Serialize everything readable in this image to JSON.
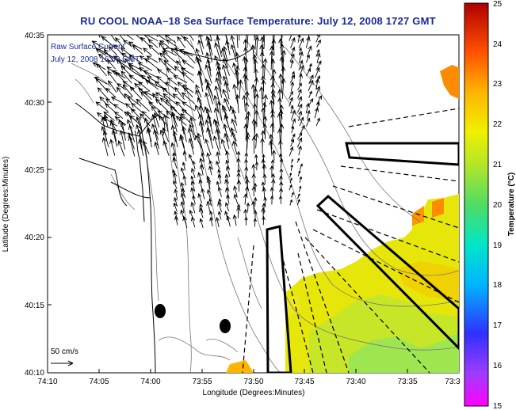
{
  "title": "RU COOL  NOAA–18  Sea Surface Temperature:  July 12, 2008 1727 GMT",
  "legend": {
    "line1": "Raw Surface Current",
    "line2": "July 12, 2008 16:00 GMT",
    "scale_label": "50 cm/s"
  },
  "axes": {
    "xlabel": "Longitude (Degrees:Minutes)",
    "ylabel": "Latitude (Degrees:Minutes)",
    "xticks": [
      "74:10",
      "74:05",
      "74:00",
      "73:55",
      "73:50",
      "73:45",
      "73:40",
      "73:35",
      "73:3"
    ],
    "yticks": [
      "40:35",
      "40:30",
      "40:25",
      "40:20",
      "40:15",
      "40:10"
    ]
  },
  "colorbar": {
    "label": "Temperature (°C)",
    "ticks": [
      "25",
      "24",
      "23",
      "22",
      "21",
      "20",
      "19",
      "18",
      "17",
      "16",
      "15"
    ],
    "min": 15,
    "max": 25
  },
  "colors": {
    "title": "#1a2a9a",
    "land_outline": "#000000",
    "bathymetry": "#777777"
  }
}
